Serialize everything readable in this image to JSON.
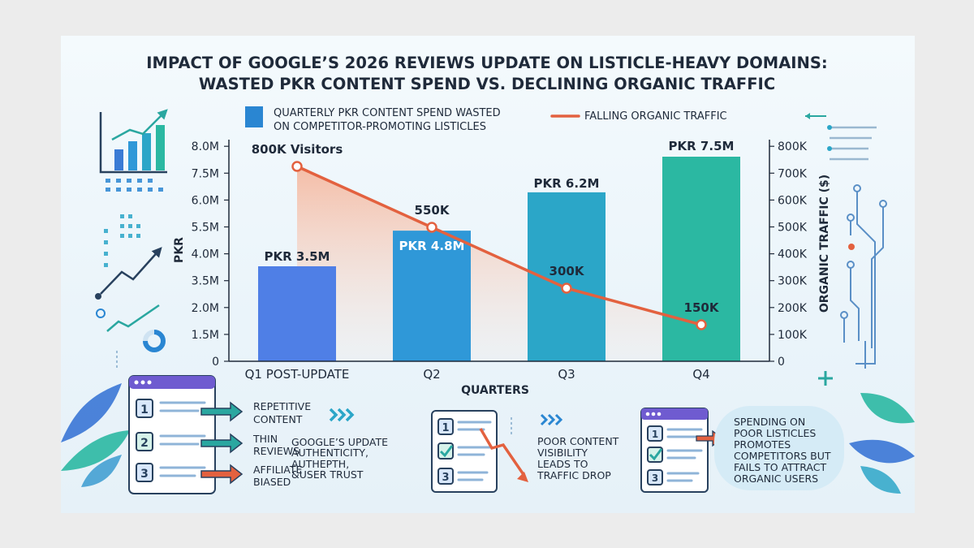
{
  "title_line1": "IMPACT OF GOOGLE’S 2026 REVIEWS UPDATE ON LISTICLE-HEAVY DOMAINS:",
  "title_line2": "WASTED PKR CONTENT SPEND VS. DECLINING ORGANIC TRAFFIC",
  "legend": {
    "bar_line1": "QUARTERLY PKR CONTENT SPEND WASTED",
    "bar_line2": "ON COMPETITOR-PROMOTING LISTICLES",
    "line": "FALLING ORGANIC TRAFFIC"
  },
  "colors": {
    "bars": [
      "#4f7fe6",
      "#2f98d8",
      "#2ba6c8",
      "#2bb8a2"
    ],
    "line": "#e3613f",
    "area": "#f7c2a9",
    "legend_bar": "#2a86d2"
  },
  "chart_data": {
    "type": "bar",
    "categories": [
      "Q1 POST-UPDATE",
      "Q2",
      "Q3",
      "Q4"
    ],
    "xlabel": "QUARTERS",
    "ylabel": "PKR",
    "y2label": "ORGANIC TRAFFIC ($)",
    "left_axis_ticks": [
      "0",
      "1.5M",
      "2.0M",
      "3.5M",
      "4.0M",
      "5.5M",
      "6.0M",
      "7.5M",
      "8.0M"
    ],
    "right_axis_ticks": [
      "0",
      "100K",
      "200K",
      "300K",
      "400K",
      "500K",
      "600K",
      "700K",
      "800K"
    ],
    "series": [
      {
        "name": "QUARTERLY PKR CONTENT SPEND WASTED ON COMPETITOR-PROMOTING LISTICLES",
        "type": "bar",
        "values": [
          3.5,
          4.8,
          6.2,
          7.5
        ],
        "labels": [
          "PKR 3.5M",
          "PKR 4.8M",
          "PKR 6.2M",
          "PKR 7.5M"
        ]
      },
      {
        "name": "FALLING ORGANIC TRAFFIC",
        "type": "line",
        "values": [
          800000,
          550000,
          300000,
          150000
        ],
        "labels": [
          "800K Visitors",
          "550K",
          "300K",
          "150K"
        ]
      }
    ]
  },
  "panels": {
    "left": {
      "numbers": [
        "1",
        "2",
        "3"
      ],
      "items": [
        "REPETITIVE",
        "CONTENT",
        "THIN",
        "REVIEWS",
        "AFFILIATE",
        "BIASED"
      ],
      "note": [
        "GOOGLE’S UPDATE",
        "AUTHENTICITY,",
        "AUTHEPTH,",
        "&USER TRUST"
      ]
    },
    "middle": {
      "numbers": [
        "1",
        "3"
      ],
      "text": [
        "POOR CONTENT",
        "VISIBILITY",
        "LEADS TO",
        "TRAFFIC DROP"
      ]
    },
    "right": {
      "numbers": [
        "1",
        "3"
      ],
      "text": [
        "SPENDING ON",
        "POOR LISTICLES",
        "PROMOTES",
        "COMPETITORS BUT",
        "FAILS TO ATTRACT",
        "ORGANIC USERS"
      ]
    }
  }
}
